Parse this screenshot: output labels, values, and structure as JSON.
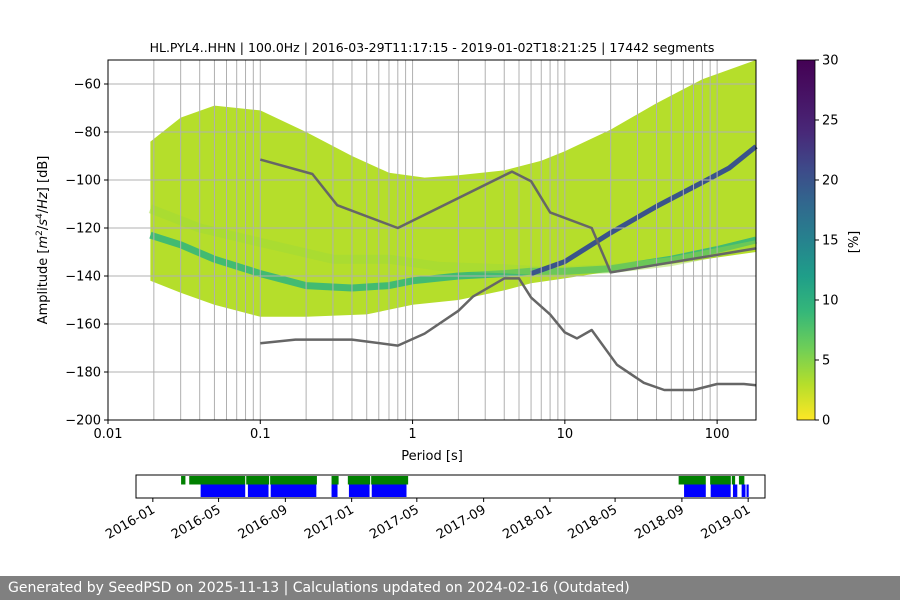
{
  "chart_data": [
    {
      "type": "heatmap",
      "title": "HL.PYL4..HHN | 100.0Hz | 2016-03-29T11:17:15 - 2019-01-02T18:21:25 | 17442 segments",
      "xlabel": "Period [s]",
      "ylabel_parts": [
        "Amplitude [",
        "m",
        "2",
        "/",
        "s",
        "4",
        "/",
        "Hz",
        "] [dB]"
      ],
      "xscale": "log",
      "xlim": [
        0.01,
        180
      ],
      "ylim": [
        -200,
        -50
      ],
      "xticks": [
        {
          "value": 0.01,
          "label": "0.01"
        },
        {
          "value": 0.1,
          "label": "0.1"
        },
        {
          "value": 1,
          "label": "1"
        },
        {
          "value": 10,
          "label": "10"
        },
        {
          "value": 100,
          "label": "100"
        }
      ],
      "yticks": [
        {
          "value": -60,
          "label": "−60"
        },
        {
          "value": -80,
          "label": "−80"
        },
        {
          "value": -100,
          "label": "−100"
        },
        {
          "value": -120,
          "label": "−120"
        },
        {
          "value": -140,
          "label": "−140"
        },
        {
          "value": -160,
          "label": "−160"
        },
        {
          "value": -180,
          "label": "−180"
        },
        {
          "value": -200,
          "label": "−200"
        }
      ],
      "grid_periods": [
        0.02,
        0.03,
        0.04,
        0.05,
        0.06,
        0.07,
        0.08,
        0.09,
        0.1,
        0.2,
        0.3,
        0.4,
        0.5,
        0.6,
        0.7,
        0.8,
        0.9,
        1,
        2,
        3,
        4,
        5,
        6,
        7,
        8,
        9,
        10,
        20,
        30,
        40,
        50,
        60,
        70,
        80,
        90,
        100
      ],
      "grid_db": [
        -60,
        -80,
        -100,
        -120,
        -140,
        -160,
        -180
      ],
      "colorbar": {
        "label": "[%]",
        "range": [
          0,
          30
        ],
        "ticks": [
          {
            "value": 0,
            "label": "0"
          },
          {
            "value": 5,
            "label": "5"
          },
          {
            "value": 10,
            "label": "10"
          },
          {
            "value": 15,
            "label": "15"
          },
          {
            "value": 20,
            "label": "20"
          },
          {
            "value": 25,
            "label": "25"
          },
          {
            "value": 30,
            "label": "30"
          }
        ]
      },
      "density_bands": [
        {
          "name": "psd-lower-envelope",
          "percent": 3,
          "points": [
            [
              0.019,
              -142
            ],
            [
              0.03,
              -147
            ],
            [
              0.05,
              -152
            ],
            [
              0.1,
              -157
            ],
            [
              0.2,
              -157
            ],
            [
              0.5,
              -156
            ],
            [
              1,
              -152
            ],
            [
              2,
              -150
            ],
            [
              4,
              -146
            ],
            [
              6,
              -143
            ],
            [
              10,
              -141
            ],
            [
              20,
              -138
            ],
            [
              50,
              -135
            ],
            [
              180,
              -130
            ]
          ]
        },
        {
          "name": "psd-upper-envelope",
          "percent": 3,
          "points": [
            [
              0.019,
              -84
            ],
            [
              0.03,
              -74
            ],
            [
              0.05,
              -69
            ],
            [
              0.1,
              -71
            ],
            [
              0.2,
              -80
            ],
            [
              0.4,
              -90
            ],
            [
              0.7,
              -97
            ],
            [
              1.2,
              -99
            ],
            [
              2,
              -98
            ],
            [
              4,
              -96
            ],
            [
              7,
              -92
            ],
            [
              10,
              -88
            ],
            [
              20,
              -79
            ],
            [
              40,
              -68
            ],
            [
              80,
              -58
            ],
            [
              180,
              -50
            ]
          ]
        },
        {
          "name": "psd-mode-ridge",
          "percent": 9,
          "points": [
            [
              0.019,
              -123
            ],
            [
              0.03,
              -127
            ],
            [
              0.05,
              -133
            ],
            [
              0.1,
              -139
            ],
            [
              0.2,
              -144
            ],
            [
              0.4,
              -145
            ],
            [
              0.7,
              -144
            ],
            [
              1,
              -142
            ],
            [
              2,
              -140
            ],
            [
              4,
              -139
            ],
            [
              6,
              -138
            ],
            [
              10,
              -138
            ],
            [
              20,
              -137
            ],
            [
              50,
              -133
            ],
            [
              100,
              -129
            ],
            [
              180,
              -125
            ]
          ]
        },
        {
          "name": "psd-upper-ridge",
          "percent": 4,
          "points": [
            [
              0.019,
              -112
            ],
            [
              0.04,
              -120
            ],
            [
              0.1,
              -126
            ],
            [
              0.3,
              -133
            ],
            [
              0.7,
              -133
            ],
            [
              1.5,
              -136
            ],
            [
              4,
              -137
            ],
            [
              8,
              -138
            ],
            [
              20,
              -137
            ],
            [
              50,
              -134
            ],
            [
              180,
              -127
            ]
          ]
        },
        {
          "name": "psd-steep-ridge",
          "percent": 20,
          "points": [
            [
              6,
              -139
            ],
            [
              10,
              -134
            ],
            [
              20,
              -122
            ],
            [
              40,
              -111
            ],
            [
              80,
              -101
            ],
            [
              120,
              -95
            ],
            [
              180,
              -86
            ]
          ]
        }
      ],
      "series": [
        {
          "name": "noise-model-upper",
          "color": "#666666",
          "points": [
            [
              0.1,
              -91.5
            ],
            [
              0.22,
              -97.5
            ],
            [
              0.32,
              -110.5
            ],
            [
              0.8,
              -120
            ],
            [
              4.5,
              -96.5
            ],
            [
              6,
              -100.5
            ],
            [
              8,
              -113.5
            ],
            [
              15,
              -120
            ],
            [
              20,
              -138.5
            ],
            [
              180,
              -128.5
            ]
          ]
        },
        {
          "name": "noise-model-lower",
          "color": "#666666",
          "points": [
            [
              0.1,
              -168
            ],
            [
              0.17,
              -166.5
            ],
            [
              0.4,
              -166.5
            ],
            [
              0.8,
              -169
            ],
            [
              1.2,
              -164
            ],
            [
              2,
              -154.5
            ],
            [
              2.5,
              -148.5
            ],
            [
              4,
              -141
            ],
            [
              5,
              -141
            ],
            [
              6,
              -149
            ],
            [
              8,
              -156
            ],
            [
              10,
              -163.5
            ],
            [
              12,
              -166
            ],
            [
              15,
              -162.5
            ],
            [
              22,
              -177
            ],
            [
              33,
              -184.5
            ],
            [
              45,
              -187.5
            ],
            [
              70,
              -187.5
            ],
            [
              100,
              -185
            ],
            [
              150,
              -185
            ],
            [
              180,
              -185.5
            ]
          ]
        }
      ]
    },
    {
      "type": "timeline",
      "name": "data-availability",
      "date_range": [
        "2015-12-01",
        "2019-02-01"
      ],
      "xticks": [
        "2016-01",
        "2016-05",
        "2016-09",
        "2017-01",
        "2017-05",
        "2017-09",
        "2018-01",
        "2018-05",
        "2018-09",
        "2019-01"
      ],
      "green_segments": [
        [
          "2016-02-22",
          "2016-03-01"
        ],
        [
          "2016-03-08",
          "2016-10-30"
        ],
        [
          "2016-11-25",
          "2016-12-08"
        ],
        [
          "2016-12-25",
          "2017-04-15"
        ],
        [
          "2018-08-26",
          "2018-10-15"
        ],
        [
          "2018-10-23",
          "2018-12-08"
        ],
        [
          "2018-12-15",
          "2018-12-25"
        ]
      ],
      "blue_segments": [
        [
          "2016-03-29",
          "2016-06-20"
        ],
        [
          "2016-06-24",
          "2016-08-01"
        ],
        [
          "2016-08-05",
          "2016-10-28"
        ],
        [
          "2016-11-25",
          "2016-12-06"
        ],
        [
          "2016-12-27",
          "2017-02-03"
        ],
        [
          "2017-02-07",
          "2017-04-12"
        ],
        [
          "2018-09-05",
          "2018-10-15"
        ],
        [
          "2018-10-24",
          "2018-11-30"
        ],
        [
          "2018-12-04",
          "2018-12-12"
        ],
        [
          "2018-12-20",
          "2019-01-02"
        ]
      ],
      "markers": [
        "2016-06-20",
        "2016-08-03",
        "2016-10-30",
        "2017-02-05",
        "2018-10-18",
        "2018-12-01",
        "2018-12-28"
      ]
    }
  ],
  "footer": {
    "text": "Generated by SeedPSD on 2025-11-13 | Calculations updated on 2024-02-16 (Outdated)"
  }
}
